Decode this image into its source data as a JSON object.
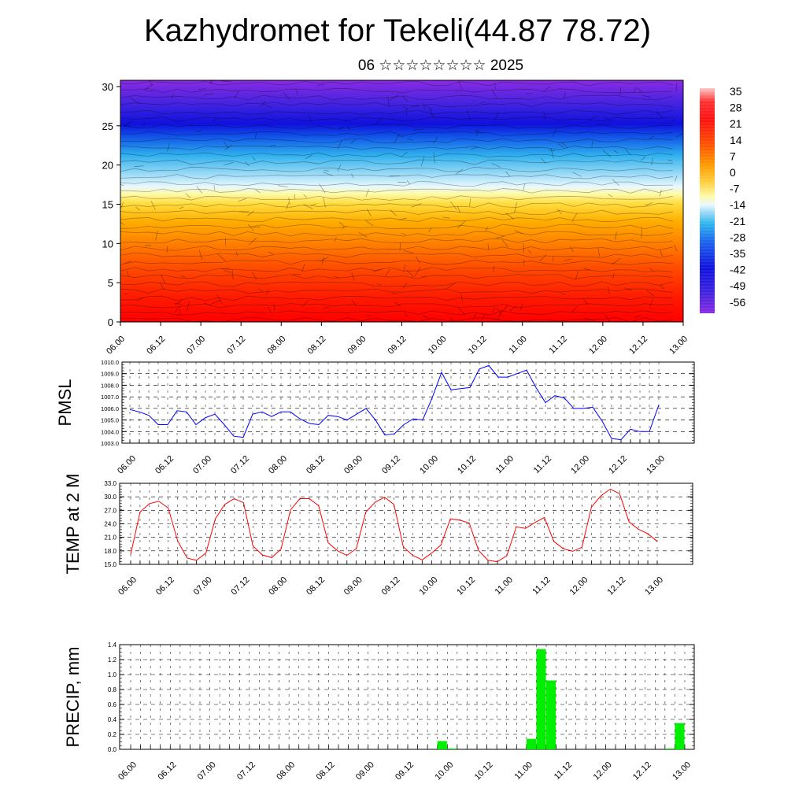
{
  "page": {
    "title": "Kazhydromet for Tekeli(44.87 78.72)",
    "subtitle": "06 ☆☆☆☆☆☆☆☆ 2025"
  },
  "chart_data": [
    {
      "type": "heatmap",
      "name": "vertical cross-section",
      "xlabel": "",
      "ylabel": "",
      "x_ticks": [
        "06.00",
        "06.12",
        "07.00",
        "07.12",
        "08.00",
        "08.12",
        "09.00",
        "09.12",
        "10.00",
        "10.12",
        "11.00",
        "11.12",
        "12.00",
        "12.12",
        "13.00"
      ],
      "y_ticks": [
        0,
        5,
        10,
        15,
        20,
        25,
        30
      ],
      "ylim": [
        0,
        30.8
      ],
      "colorbar_labels": [
        "35",
        "28",
        "21",
        "14",
        "7",
        "0",
        "-7",
        "-14",
        "-21",
        "-28",
        "-35",
        "-42",
        "-49",
        "-56"
      ],
      "colorbar_range": [
        -63,
        42
      ],
      "colors": {
        "hot": "#ff0000",
        "warm": "#ffa500",
        "neutral": "#fff6a0",
        "cool": "#2fb8ee",
        "cold": "#1010dd",
        "coldest": "#8a2be2"
      }
    },
    {
      "type": "line",
      "name": "PMSL",
      "ylabel": "PMSL",
      "color": "#0000ff",
      "x_ticks": [
        "06.00",
        "06.12",
        "07.00",
        "07.12",
        "08.00",
        "08.12",
        "09.00",
        "09.12",
        "10.00",
        "10.12",
        "11.00",
        "11.12",
        "12.00",
        "12.12",
        "13.00"
      ],
      "y_ticks": [
        "1003.0",
        "1004.0",
        "1005.0",
        "1006.0",
        "1007.0",
        "1008.0",
        "1009.0",
        "1010.0"
      ],
      "ylim": [
        1003,
        1010
      ],
      "values": [
        1005.9,
        1005.7,
        1005.4,
        1004.6,
        1004.6,
        1005.8,
        1005.7,
        1004.6,
        1005.2,
        1005.5,
        1004.6,
        1003.6,
        1003.5,
        1005.5,
        1005.7,
        1005.3,
        1005.7,
        1005.7,
        1005.1,
        1004.7,
        1004.6,
        1005.4,
        1005.3,
        1005.0,
        1005.5,
        1006.0,
        1005.0,
        1003.7,
        1003.8,
        1004.6,
        1005.1,
        1005.0,
        1006.9,
        1009.1,
        1007.6,
        1007.7,
        1007.8,
        1009.4,
        1009.7,
        1008.7,
        1008.7,
        1009.0,
        1009.3,
        1007.8,
        1006.5,
        1007.1,
        1006.9,
        1006.0,
        1006.0,
        1006.1,
        1004.9,
        1003.4,
        1003.3,
        1004.2,
        1004.0,
        1004.0,
        1006.3
      ]
    },
    {
      "type": "line",
      "name": "TEMP at 2 M",
      "ylabel": "TEMP at 2 M",
      "color": "#ff0000",
      "x_ticks": [
        "06.00",
        "06.12",
        "07.00",
        "07.12",
        "08.00",
        "08.12",
        "09.00",
        "09.12",
        "10.00",
        "10.12",
        "11.00",
        "11.12",
        "12.00",
        "12.12",
        "13.00"
      ],
      "y_ticks": [
        "15.0",
        "18.0",
        "21.0",
        "24.0",
        "27.0",
        "30.0",
        "33.0"
      ],
      "ylim": [
        15,
        33
      ],
      "values": [
        17.2,
        26.6,
        28.5,
        29.0,
        27.5,
        20.2,
        16.4,
        15.9,
        17.5,
        25.1,
        28.3,
        29.6,
        28.7,
        19.1,
        17.1,
        16.5,
        18.4,
        27.1,
        29.6,
        29.6,
        28.0,
        19.8,
        18.0,
        17.0,
        18.5,
        26.6,
        28.8,
        29.9,
        28.3,
        18.9,
        17.0,
        16.0,
        17.5,
        19.3,
        25.1,
        24.8,
        24.2,
        18.1,
        15.9,
        15.6,
        16.9,
        23.3,
        23.0,
        24.3,
        25.4,
        20.1,
        18.5,
        17.9,
        18.8,
        27.7,
        30.2,
        31.7,
        30.7,
        24.4,
        22.8,
        21.8,
        20.1
      ]
    },
    {
      "type": "bar",
      "name": "PRECIP, mm",
      "ylabel": "PRECIP, mm",
      "color": "#00ee00",
      "x_ticks": [
        "06.00",
        "06.12",
        "07.00",
        "07.12",
        "08.00",
        "08.12",
        "09.00",
        "09.12",
        "10.00",
        "10.12",
        "11.00",
        "11.12",
        "12.00",
        "12.12",
        "13.00"
      ],
      "y_ticks": [
        "0.0",
        "0.2",
        "0.4",
        "0.6",
        "0.8",
        "1.0",
        "1.2",
        "1.4"
      ],
      "ylim": [
        0,
        1.4
      ],
      "values": [
        0,
        0,
        0,
        0,
        0,
        0,
        0,
        0,
        0,
        0,
        0,
        0,
        0,
        0,
        0,
        0,
        0,
        0,
        0,
        0,
        0,
        0,
        0,
        0,
        0,
        0,
        0,
        0,
        0,
        0,
        0,
        0,
        0.11,
        0.01,
        0,
        0,
        0,
        0,
        0,
        0,
        0,
        0.14,
        1.34,
        0.92,
        0,
        0,
        0,
        0,
        0,
        0,
        0,
        0,
        0,
        0,
        0,
        0.01,
        0.35
      ]
    }
  ]
}
